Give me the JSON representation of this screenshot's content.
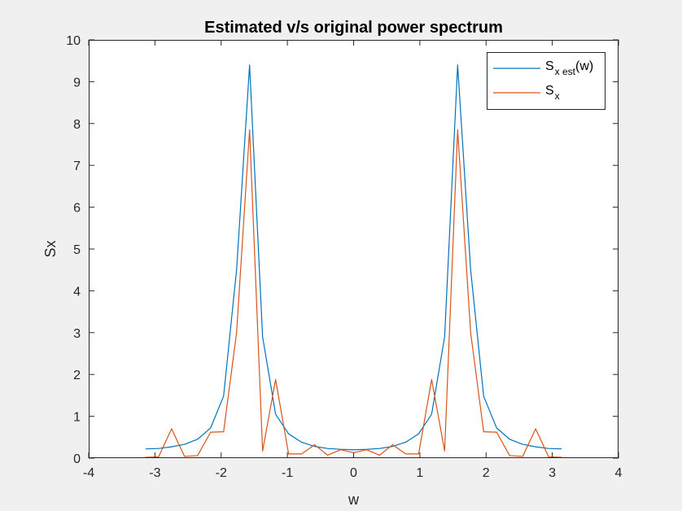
{
  "chart_data": {
    "type": "line",
    "title": "Estimated v/s original power spectrum",
    "xlabel": "w",
    "ylabel": "Sx",
    "xlim": [
      -4,
      4
    ],
    "ylim": [
      0,
      10
    ],
    "xticks": [
      "-4",
      "-3",
      "-2",
      "-1",
      "0",
      "1",
      "2",
      "3",
      "4"
    ],
    "yticks": [
      "0",
      "1",
      "2",
      "3",
      "4",
      "5",
      "6",
      "7",
      "8",
      "9",
      "10"
    ],
    "grid": false,
    "legend_position": "top-right",
    "series": [
      {
        "name": "S_x est(w)",
        "legend": {
          "base": "S",
          "sub": "x est",
          "suffix": "(w)"
        },
        "color": "#0072BD",
        "x": [
          -3.1416,
          -2.9452,
          -2.7489,
          -2.5525,
          -2.3562,
          -2.1598,
          -1.9635,
          -1.7671,
          -1.5708,
          -1.3744,
          -1.1781,
          -0.9817,
          -0.7854,
          -0.589,
          -0.3927,
          -0.1963,
          0.0,
          0.1963,
          0.3927,
          0.589,
          0.7854,
          0.9817,
          1.1781,
          1.3744,
          1.5708,
          1.7671,
          1.9635,
          2.1598,
          2.3562,
          2.5525,
          2.7489,
          2.9452,
          3.1416
        ],
        "y": [
          0.22,
          0.23,
          0.27,
          0.33,
          0.45,
          0.72,
          1.48,
          4.5,
          9.4,
          2.9,
          1.05,
          0.58,
          0.38,
          0.28,
          0.23,
          0.21,
          0.2,
          0.21,
          0.23,
          0.28,
          0.38,
          0.58,
          1.05,
          2.9,
          9.4,
          4.5,
          1.48,
          0.72,
          0.45,
          0.33,
          0.27,
          0.23,
          0.22
        ]
      },
      {
        "name": "S_x",
        "legend": {
          "base": "S",
          "sub": "x",
          "suffix": ""
        },
        "color": "#D95319",
        "x": [
          -3.1416,
          -2.9452,
          -2.7489,
          -2.5525,
          -2.3562,
          -2.1598,
          -1.9635,
          -1.7671,
          -1.5708,
          -1.3744,
          -1.1781,
          -0.9817,
          -0.7854,
          -0.589,
          -0.3927,
          -0.1963,
          0.0,
          0.1963,
          0.3927,
          0.589,
          0.7854,
          0.9817,
          1.1781,
          1.3744,
          1.5708,
          1.7671,
          1.9635,
          2.1598,
          2.3562,
          2.5525,
          2.7489,
          2.9452,
          3.1416
        ],
        "y": [
          0.02,
          0.03,
          0.7,
          0.04,
          0.06,
          0.62,
          0.63,
          3.0,
          7.85,
          0.17,
          1.88,
          0.1,
          0.1,
          0.32,
          0.07,
          0.2,
          0.13,
          0.2,
          0.07,
          0.32,
          0.1,
          0.1,
          1.88,
          0.17,
          7.85,
          3.0,
          0.63,
          0.62,
          0.06,
          0.04,
          0.7,
          0.03,
          0.02
        ]
      }
    ]
  }
}
